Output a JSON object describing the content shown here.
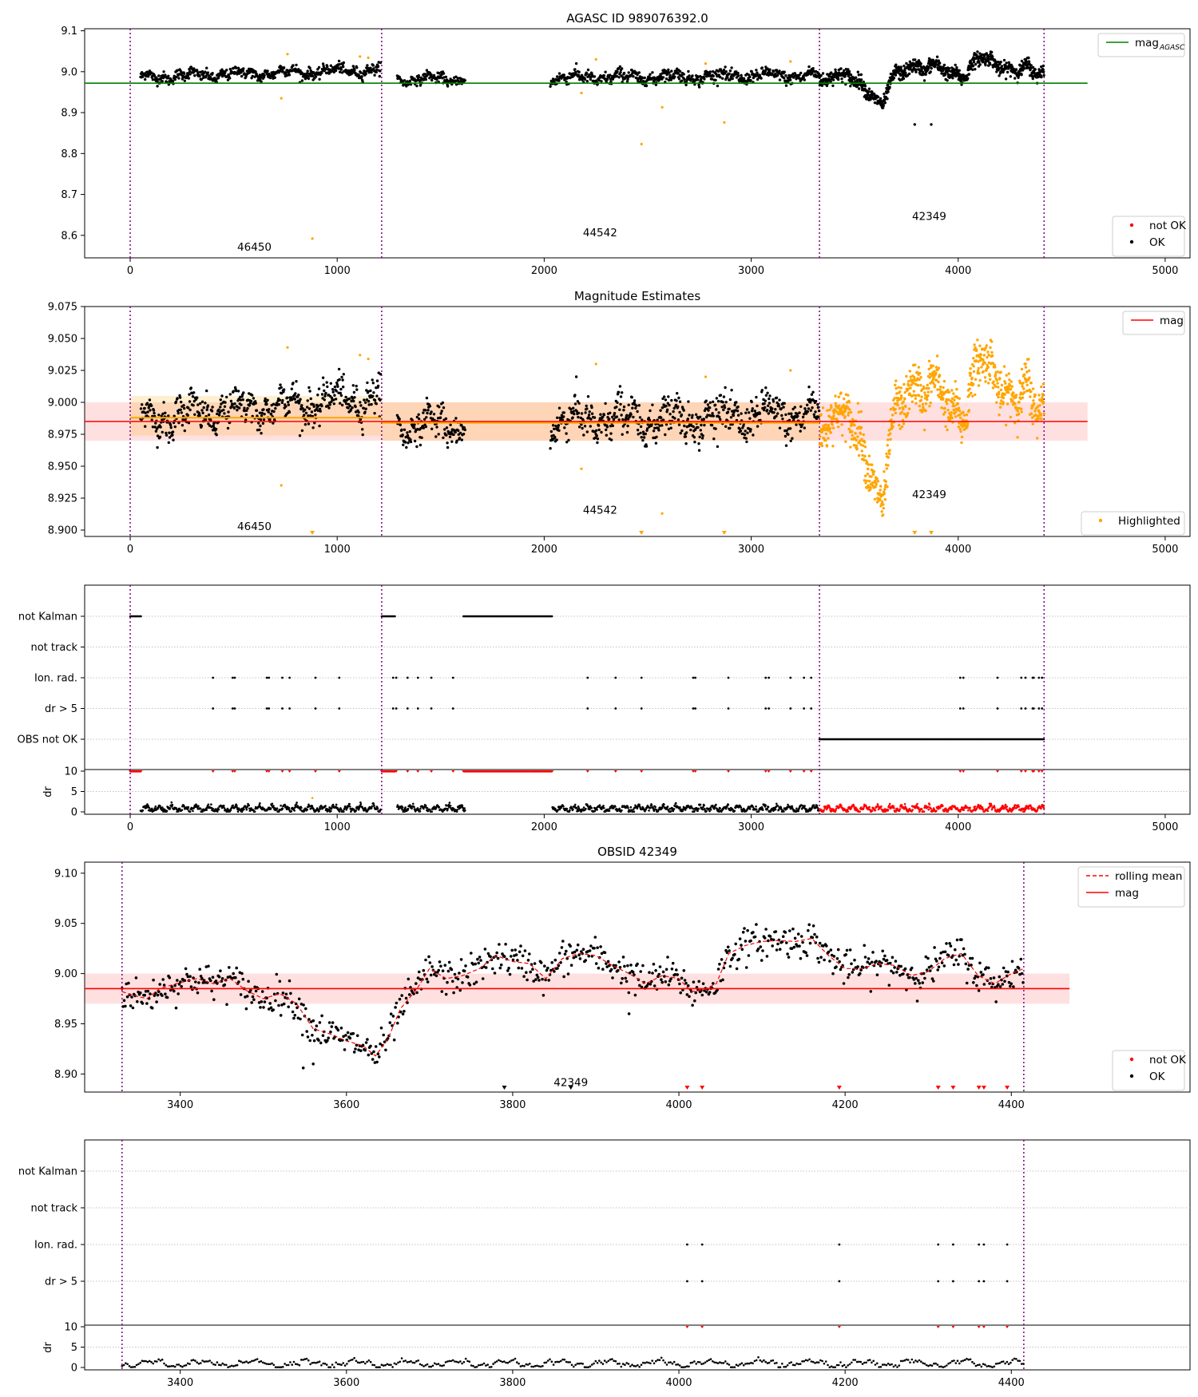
{
  "chart_data": [
    {
      "id": "p1",
      "type": "scatter",
      "title": "AGASC ID 989076392.0",
      "xlim": [
        -220,
        5120
      ],
      "ylim": [
        8.545,
        9.105
      ],
      "xticks": [
        0,
        1000,
        2000,
        3000,
        4000,
        5000
      ],
      "xtick_labels": [
        "0",
        "1000",
        "2000",
        "3000",
        "4000",
        "5000"
      ],
      "yticks": [
        8.6,
        8.7,
        8.8,
        8.9,
        9.0,
        9.1
      ],
      "ytick_labels": [
        "8.6",
        "8.7",
        "8.8",
        "8.9",
        "9.0",
        "9.1"
      ],
      "vlines": [
        0,
        1215,
        3330,
        4415
      ],
      "hline": {
        "y": 8.972,
        "x0": -220,
        "x1": 4625,
        "color": "#008000",
        "name": "mag_AGASC"
      },
      "obsid_labels": [
        {
          "x": 600,
          "y": 8.572,
          "text": "46450"
        },
        {
          "x": 2270,
          "y": 8.607,
          "text": "44542"
        },
        {
          "x": 3860,
          "y": 8.647,
          "text": "42349"
        }
      ],
      "legend_top": [
        {
          "label": "mag",
          "sub": "AGASC",
          "color": "#008000"
        }
      ],
      "legend_bottom": [
        {
          "label": "not OK",
          "color": "#ff0000"
        },
        {
          "label": "OK",
          "color": "#000000"
        }
      ],
      "segments": [
        {
          "x0": 50,
          "x1": 1210,
          "base": 8.987,
          "drift": 0.018,
          "sd": 0.008,
          "step": 2.2
        },
        {
          "x0": 1290,
          "x1": 1620,
          "base": 8.982,
          "drift": 0,
          "sd": 0.007,
          "step": 2.2
        },
        {
          "x0": 2030,
          "x1": 3330,
          "base": 8.985,
          "drift": 0.006,
          "sd": 0.009,
          "step": 2.2
        }
      ],
      "obs3_points": true,
      "outliers": [
        {
          "x": 880,
          "y": 8.592
        },
        {
          "x": 730,
          "y": 8.935
        },
        {
          "x": 760,
          "y": 9.043
        },
        {
          "x": 1110,
          "y": 9.037
        },
        {
          "x": 1150,
          "y": 9.034
        },
        {
          "x": 2470,
          "y": 8.823
        },
        {
          "x": 2570,
          "y": 8.913
        },
        {
          "x": 2870,
          "y": 8.876
        },
        {
          "x": 2250,
          "y": 9.03
        },
        {
          "x": 2180,
          "y": 8.948
        },
        {
          "x": 2780,
          "y": 9.02
        },
        {
          "x": 3190,
          "y": 9.025
        }
      ],
      "black_outliers": [
        {
          "x": 3790,
          "y": 8.871
        },
        {
          "x": 3870,
          "y": 8.871
        }
      ]
    },
    {
      "id": "p2",
      "type": "scatter",
      "title": "Magnitude Estimates",
      "xlim": [
        -220,
        5120
      ],
      "ylim": [
        8.895,
        9.075
      ],
      "xticks": [
        0,
        1000,
        2000,
        3000,
        4000,
        5000
      ],
      "xtick_labels": [
        "0",
        "1000",
        "2000",
        "3000",
        "4000",
        "5000"
      ],
      "yticks": [
        8.9,
        8.925,
        8.95,
        8.975,
        9.0,
        9.025,
        9.05,
        9.075
      ],
      "ytick_labels": [
        "8.900",
        "8.925",
        "8.950",
        "8.975",
        "9.000",
        "9.025",
        "9.050",
        "9.075"
      ],
      "vlines": [
        0,
        1215,
        3330,
        4415
      ],
      "mag_line": {
        "y": 8.985,
        "lo": 8.97,
        "hi": 9.0,
        "x0": -220,
        "x1": 4625,
        "color": "#ff0000",
        "name": "mag"
      },
      "obs_mean_lines": [
        {
          "x0": 0,
          "x1": 1215,
          "y": 8.988,
          "lo": 8.974,
          "hi": 9.005
        },
        {
          "x0": 1215,
          "x1": 3330,
          "y": 8.984,
          "lo": 8.97,
          "hi": 9.0
        }
      ],
      "obsid_labels": [
        {
          "x": 600,
          "y": 8.903,
          "text": "46450"
        },
        {
          "x": 2270,
          "y": 8.916,
          "text": "44542"
        },
        {
          "x": 3860,
          "y": 8.928,
          "text": "42349"
        }
      ],
      "legend_bottom": [
        {
          "label": "Highlighted",
          "color": "#ffa500"
        }
      ],
      "legend_top": [
        {
          "label": "mag",
          "color": "#ff0000"
        }
      ],
      "triangles": [
        880,
        2470,
        2870,
        3790,
        3870
      ]
    },
    {
      "id": "p3",
      "type": "flags",
      "xlim": [
        -220,
        5120
      ],
      "xticks": [
        0,
        1000,
        2000,
        3000,
        4000,
        5000
      ],
      "xtick_labels": [
        "0",
        "1000",
        "2000",
        "3000",
        "4000",
        "5000"
      ],
      "vlines": [
        0,
        1215,
        3330,
        4415
      ],
      "rows": [
        "not Kalman",
        "not track",
        "Ion. rad.",
        "dr > 5",
        "OBS not OK"
      ],
      "dr_label": "dr",
      "dr_yticks": [
        0,
        5,
        10
      ],
      "dr_ytick_labels": [
        "0",
        "5",
        "10"
      ],
      "not_kalman": [
        [
          0,
          55
        ],
        [
          1215,
          1280
        ],
        [
          1610,
          2040
        ]
      ],
      "obs_not_ok": [
        [
          3330,
          4415
        ]
      ],
      "ion_points": [
        400,
        495,
        505,
        660,
        670,
        735,
        770,
        895,
        1010,
        1270,
        1285,
        1340,
        1390,
        1455,
        1560,
        2210,
        2345,
        2470,
        2720,
        2730,
        2890,
        3070,
        3085,
        3190,
        3255,
        3290,
        4010,
        4025,
        4190,
        4305,
        4325,
        4360,
        4365,
        4390,
        4405
      ]
    },
    {
      "id": "p4",
      "type": "scatter",
      "title": "OBSID 42349",
      "xlim": [
        3285,
        4615
      ],
      "ylim": [
        8.882,
        9.111
      ],
      "xticks": [
        3400,
        3600,
        3800,
        4000,
        4200,
        4400
      ],
      "xtick_labels": [
        "3400",
        "3600",
        "3800",
        "4000",
        "4200",
        "4400"
      ],
      "yticks": [
        8.9,
        8.95,
        9.0,
        9.05,
        9.1
      ],
      "ytick_labels": [
        "8.90",
        "8.95",
        "9.00",
        "9.05",
        "9.10"
      ],
      "vlines": [
        3330,
        4415
      ],
      "mag_line": {
        "y": 8.985,
        "lo": 8.97,
        "hi": 9.0,
        "x0": 3285,
        "x1": 4470,
        "color": "#ff0000",
        "name": "mag"
      },
      "obsid_labels": [
        {
          "x": 3870,
          "y": 8.892,
          "text": "42349"
        }
      ],
      "legend_top": [
        {
          "label": "rolling mean",
          "color": "#ff0000",
          "dashed": true
        },
        {
          "label": "mag",
          "color": "#ff0000"
        }
      ],
      "legend_bottom": [
        {
          "label": "not OK",
          "color": "#ff0000"
        },
        {
          "label": "OK",
          "color": "#000000"
        }
      ],
      "curve": [
        [
          3330,
          8.982
        ],
        [
          3345,
          8.978
        ],
        [
          3360,
          8.975
        ],
        [
          3375,
          8.985
        ],
        [
          3395,
          8.99
        ],
        [
          3420,
          8.995
        ],
        [
          3440,
          8.99
        ],
        [
          3460,
          8.995
        ],
        [
          3480,
          8.983
        ],
        [
          3500,
          8.975
        ],
        [
          3520,
          8.98
        ],
        [
          3540,
          8.97
        ],
        [
          3560,
          8.945
        ],
        [
          3580,
          8.94
        ],
        [
          3600,
          8.933
        ],
        [
          3620,
          8.928
        ],
        [
          3635,
          8.918
        ],
        [
          3650,
          8.935
        ],
        [
          3665,
          8.965
        ],
        [
          3685,
          8.985
        ],
        [
          3700,
          9.005
        ],
        [
          3720,
          8.995
        ],
        [
          3740,
          8.998
        ],
        [
          3760,
          9.005
        ],
        [
          3780,
          9.018
        ],
        [
          3800,
          9.012
        ],
        [
          3820,
          9.01
        ],
        [
          3840,
          8.995
        ],
        [
          3860,
          9.015
        ],
        [
          3880,
          9.02
        ],
        [
          3900,
          9.018
        ],
        [
          3920,
          9.008
        ],
        [
          3940,
          9.0
        ],
        [
          3960,
          8.99
        ],
        [
          3980,
          8.998
        ],
        [
          4000,
          8.995
        ],
        [
          4015,
          8.982
        ],
        [
          4030,
          8.984
        ],
        [
          4045,
          8.99
        ],
        [
          4060,
          9.02
        ],
        [
          4080,
          9.028
        ],
        [
          4100,
          9.032
        ],
        [
          4120,
          9.033
        ],
        [
          4140,
          9.032
        ],
        [
          4160,
          9.035
        ],
        [
          4180,
          9.018
        ],
        [
          4200,
          9.005
        ],
        [
          4220,
          9.005
        ],
        [
          4240,
          9.01
        ],
        [
          4260,
          9.008
        ],
        [
          4280,
          8.998
        ],
        [
          4300,
          9.002
        ],
        [
          4320,
          9.015
        ],
        [
          4340,
          9.02
        ],
        [
          4360,
          8.998
        ],
        [
          4380,
          8.99
        ],
        [
          4400,
          9.0
        ],
        [
          4415,
          9.005
        ]
      ],
      "outliers": [
        {
          "x": 3548,
          "y": 8.906
        },
        {
          "x": 3940,
          "y": 8.96
        },
        {
          "x": 3560,
          "y": 8.91
        }
      ],
      "red_triangles": [
        4010,
        4028,
        4193,
        4312,
        4330,
        4361,
        4367,
        4395
      ],
      "black_triangles": [
        3790,
        3870
      ]
    },
    {
      "id": "p5",
      "type": "flags",
      "xlim": [
        3285,
        4615
      ],
      "xticks": [
        3400,
        3600,
        3800,
        4000,
        4200,
        4400
      ],
      "xtick_labels": [
        "3400",
        "3600",
        "3800",
        "4000",
        "4200",
        "4400"
      ],
      "vlines": [
        3330,
        4415
      ],
      "rows": [
        "not Kalman",
        "not track",
        "Ion. rad.",
        "dr > 5"
      ],
      "dr_label": "dr",
      "dr_yticks": [
        0,
        5,
        10
      ],
      "dr_ytick_labels": [
        "0",
        "5",
        "10"
      ],
      "ion_points": [
        4010,
        4028,
        4193,
        4312,
        4330,
        4361,
        4367,
        4395
      ]
    }
  ]
}
